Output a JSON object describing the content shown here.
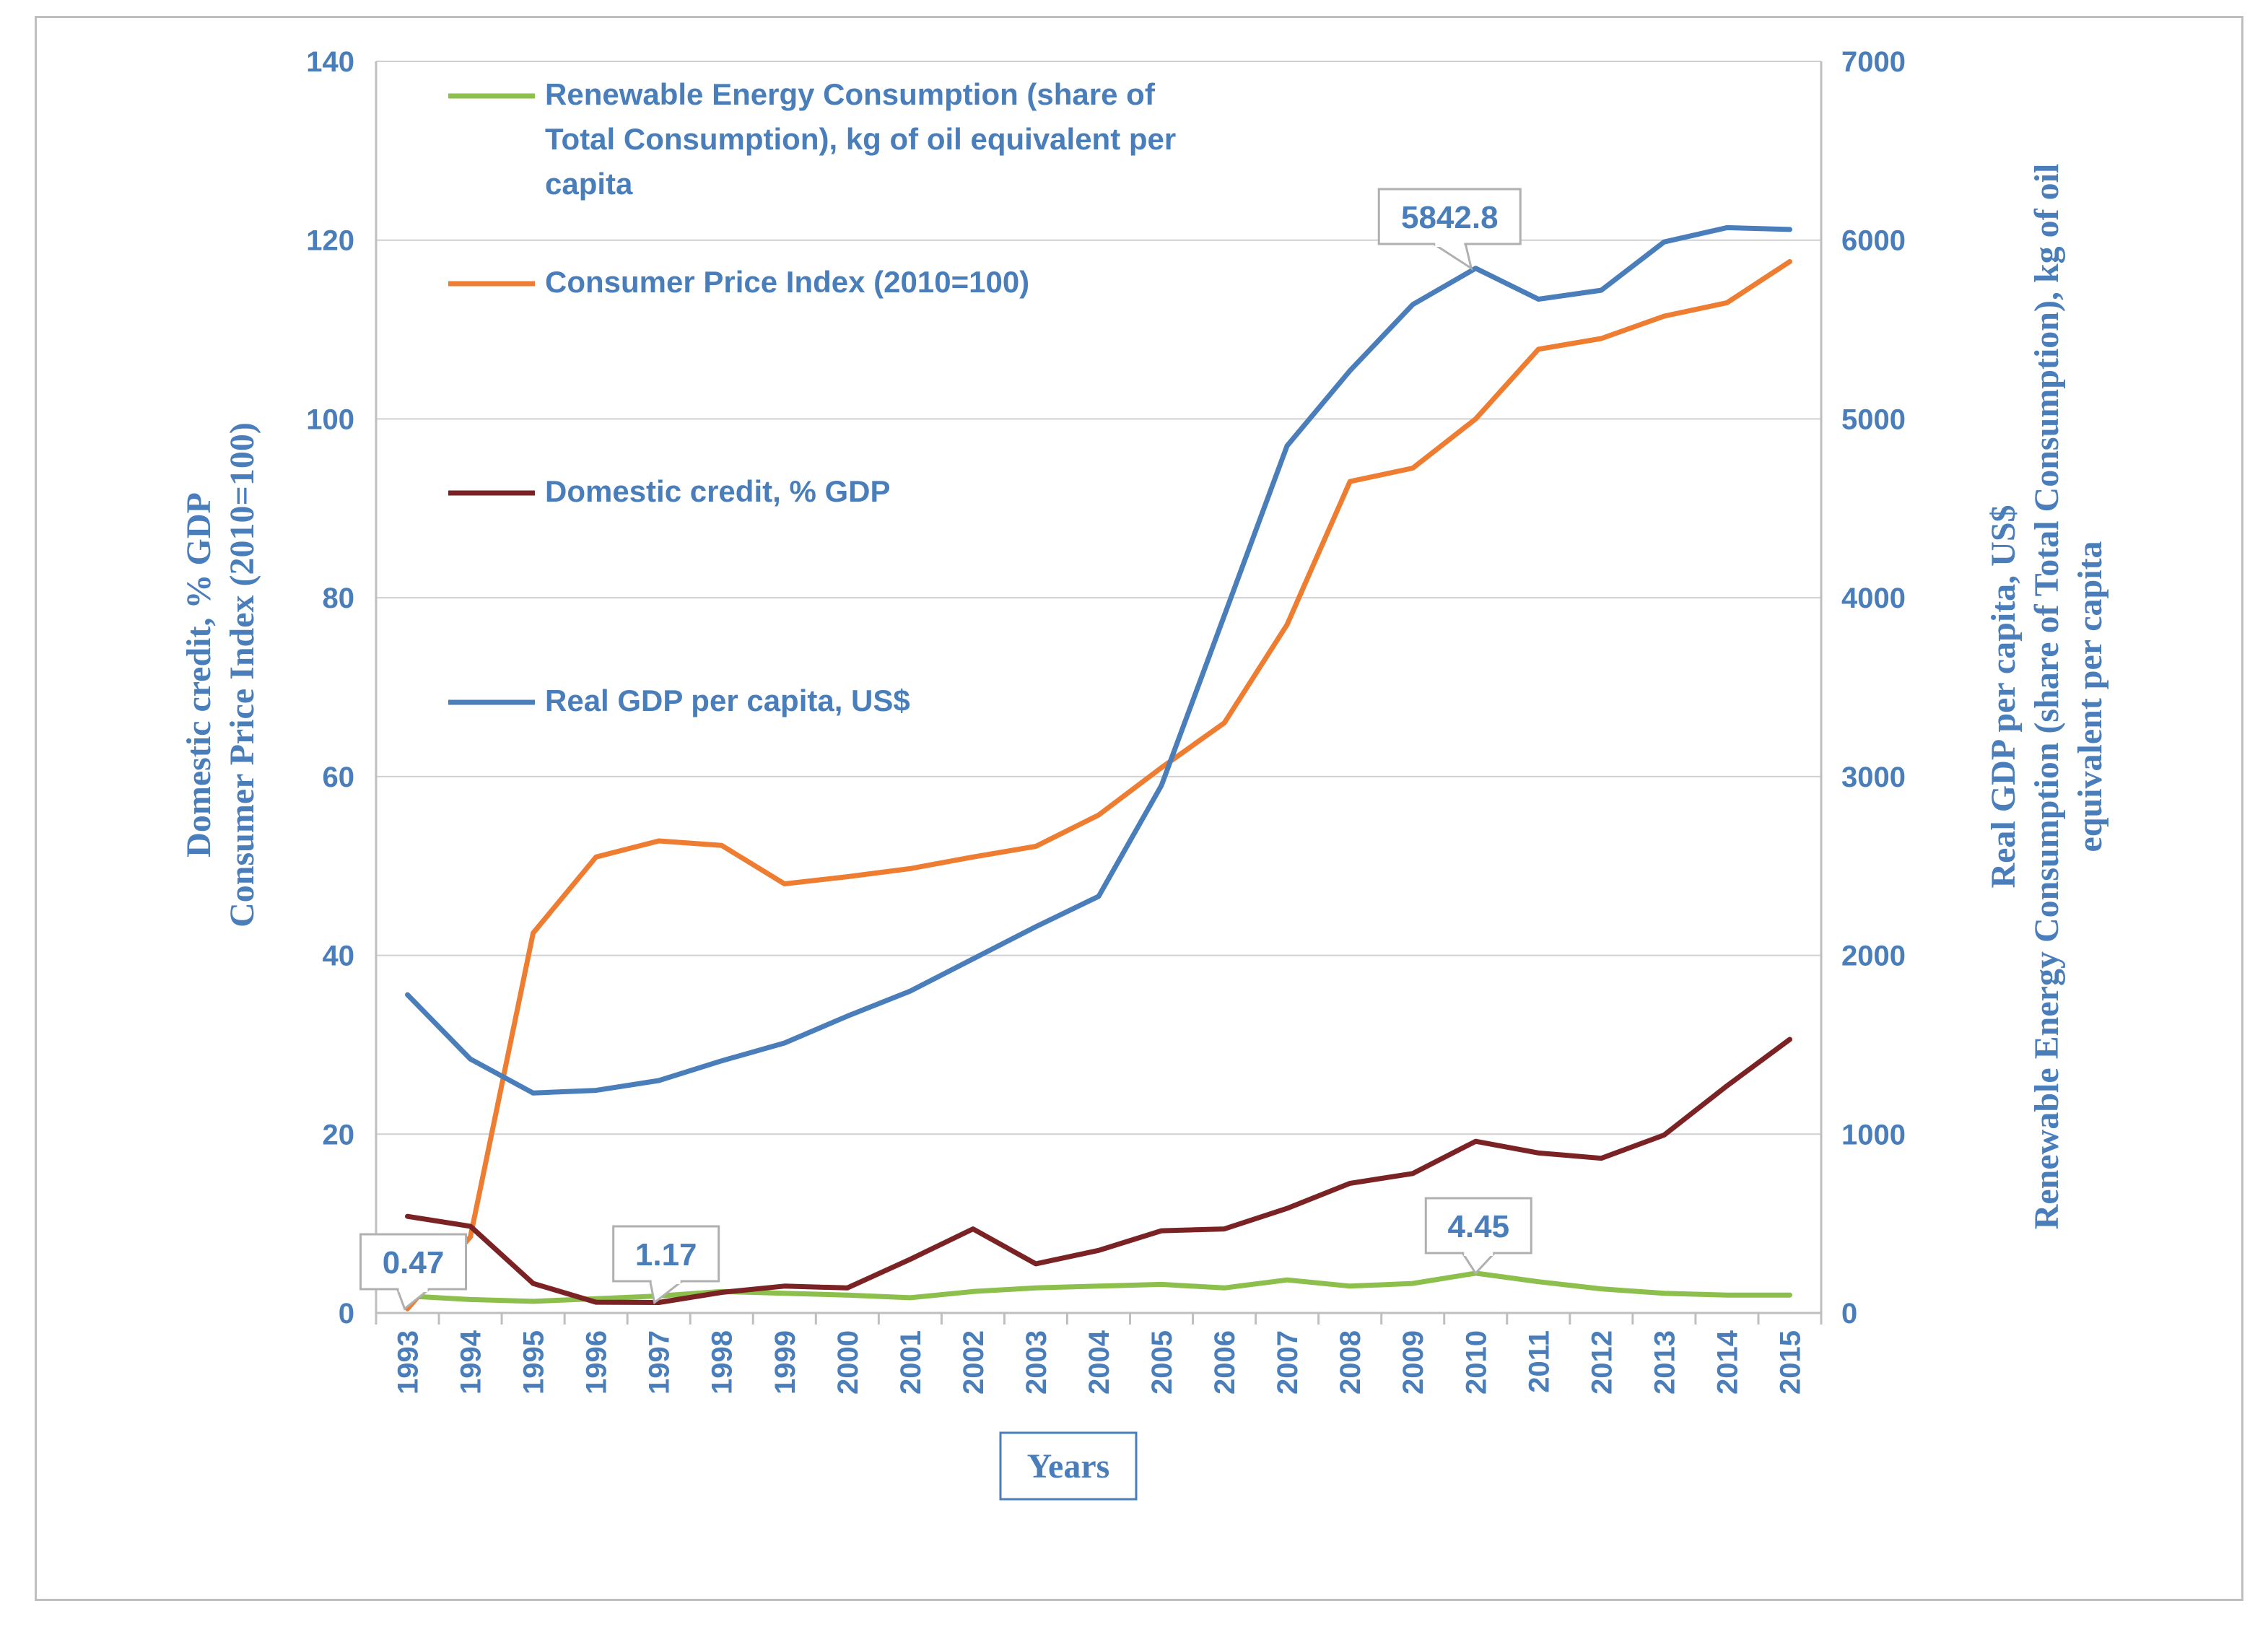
{
  "chart_data": {
    "type": "line",
    "categories": [
      "1993",
      "1994",
      "1995",
      "1996",
      "1997",
      "1998",
      "1999",
      "2000",
      "2001",
      "2002",
      "2003",
      "2004",
      "2005",
      "2006",
      "2007",
      "2008",
      "2009",
      "2010",
      "2011",
      "2012",
      "2013",
      "2014",
      "2015"
    ],
    "xlabel": "Years",
    "ylabel_left": [
      "Domestic credit,  % GDP",
      "Consumer Price Index  (2010=100)"
    ],
    "ylabel_right": [
      "Real GDP per capita, US$",
      "Renewable Energy Consumption (share of Total Consumption), kg of oil",
      "equivalent per capita"
    ],
    "y_left": {
      "min": 0,
      "max": 140,
      "ticks": [
        "0",
        "20",
        "40",
        "60",
        "80",
        "100",
        "120",
        "140"
      ]
    },
    "y_right": {
      "min": 0,
      "max": 7000,
      "ticks": [
        "0",
        "1000",
        "2000",
        "3000",
        "4000",
        "5000",
        "6000",
        "7000"
      ]
    },
    "grid": true,
    "series": [
      {
        "name": "Renewable Energy Consumption (share of Total Consumption), kg of oil equivalent per capita",
        "legend_lines": [
          "Renewable Energy Consumption (share of",
          "Total Consumption), kg of oil equivalent per",
          "capita"
        ],
        "axis": "left",
        "color": "#8cbf4c",
        "values": [
          1.9,
          1.5,
          1.3,
          1.6,
          1.9,
          2.4,
          2.2,
          2.0,
          1.7,
          2.4,
          2.8,
          3.0,
          3.2,
          2.8,
          3.7,
          3.0,
          3.3,
          4.45,
          3.5,
          2.7,
          2.2,
          2.0,
          2.0
        ]
      },
      {
        "name": "Consumer Price Index (2010=100)",
        "legend_lines": [
          "Consumer Price Index (2010=100)"
        ],
        "axis": "left",
        "color": "#ee7d31",
        "values": [
          0.47,
          8.5,
          42.5,
          51.0,
          52.8,
          52.3,
          48.0,
          48.8,
          49.7,
          51.0,
          52.2,
          55.7,
          61.0,
          66.0,
          77.0,
          93.0,
          94.5,
          100.0,
          107.8,
          109.0,
          111.5,
          113.0,
          117.6
        ]
      },
      {
        "name": "Domestic credit, % GDP",
        "legend_lines": [
          "Domestic credit, % GDP"
        ],
        "axis": "left",
        "color": "#7b2324",
        "values": [
          10.8,
          9.7,
          3.3,
          1.2,
          1.17,
          2.3,
          3.0,
          2.8,
          6.0,
          9.4,
          5.5,
          7.0,
          9.2,
          9.4,
          11.7,
          14.5,
          15.6,
          19.2,
          17.9,
          17.3,
          19.9,
          25.4,
          30.6
        ]
      },
      {
        "name": "Real GDP per capita, US$",
        "legend_lines": [
          "Real GDP per capita, US$"
        ],
        "axis": "right",
        "color": "#4a7ebb",
        "values": [
          1780,
          1420,
          1230,
          1245,
          1300,
          1410,
          1510,
          1660,
          1800,
          1980,
          2160,
          2330,
          2950,
          3900,
          4850,
          5270,
          5640,
          5842.8,
          5670,
          5720,
          5990,
          6070,
          6060
        ]
      }
    ],
    "annotations": [
      {
        "text": "0.47",
        "series": "Consumer Price Index (2010=100)",
        "year": "1993"
      },
      {
        "text": "1.17",
        "series": "Domestic credit, % GDP",
        "year": "1997"
      },
      {
        "text": "4.45",
        "series": "Renewable Energy Consumption",
        "year": "2010"
      },
      {
        "text": "5842.8",
        "series": "Real GDP per capita, US$",
        "year": "2010"
      }
    ]
  }
}
